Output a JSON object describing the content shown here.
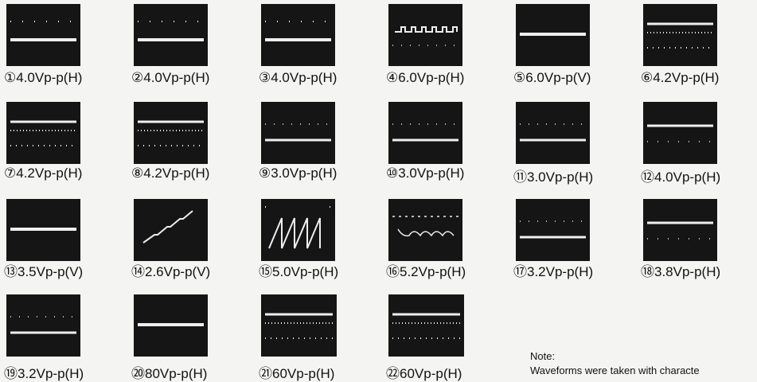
{
  "items": [
    {
      "label": "①4.0Vp-p(H)"
    },
    {
      "label": "②4.0Vp-p(H)"
    },
    {
      "label": "③4.0Vp-p(H)"
    },
    {
      "label": "④6.0Vp-p(H)"
    },
    {
      "label": "⑤6.0Vp-p(V)"
    },
    {
      "label": "⑥4.2Vp-p(H)"
    },
    {
      "label": "⑦4.2Vp-p(H)"
    },
    {
      "label": "⑧4.2Vp-p(H)"
    },
    {
      "label": "⑨3.0Vp-p(H)"
    },
    {
      "label": "⑩3.0Vp-p(H)"
    },
    {
      "label": "⑪3.0Vp-p(H)"
    },
    {
      "label": "⑫4.0Vp-p(H)"
    },
    {
      "label": "⑬3.5Vp-p(V)"
    },
    {
      "label": "⑭2.6Vp-p(V)"
    },
    {
      "label": "⑮5.0Vp-p(H)"
    },
    {
      "label": "⑯5.2Vp-p(H)"
    },
    {
      "label": "⑰3.2Vp-p(H)"
    },
    {
      "label": "⑱3.8Vp-p(H)"
    },
    {
      "label": "⑲3.2Vp-p(H)"
    },
    {
      "label": "⑳80Vp-p(H)"
    },
    {
      "label": "㉑60Vp-p(H)"
    },
    {
      "label": "㉒60Vp-p(H)"
    }
  ],
  "note": {
    "title": "Note:",
    "text": "Waveforms were taken with characte"
  }
}
